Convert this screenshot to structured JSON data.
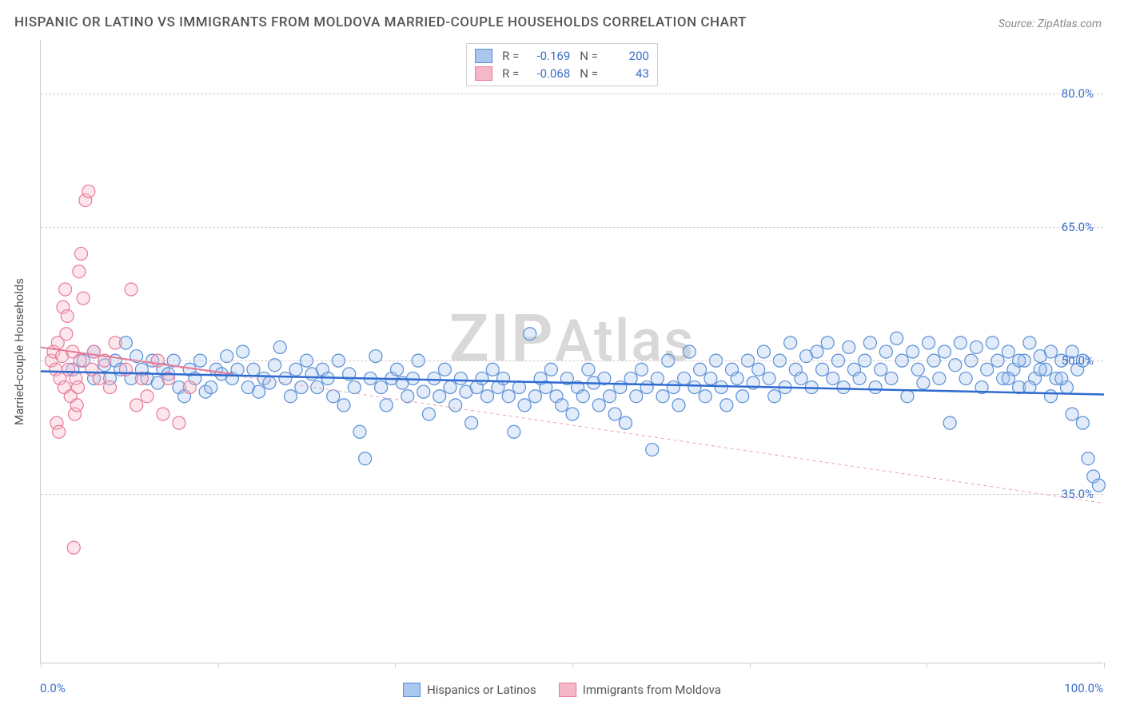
{
  "title": "HISPANIC OR LATINO VS IMMIGRANTS FROM MOLDOVA MARRIED-COUPLE HOUSEHOLDS CORRELATION CHART",
  "source": "Source: ZipAtlas.com",
  "watermark_prefix": "ZIP",
  "watermark_suffix": "Atlas",
  "y_axis_title": "Married-couple Households",
  "chart": {
    "type": "scatter",
    "xlim": [
      0,
      100
    ],
    "ylim": [
      16,
      86
    ],
    "y_gridlines": [
      35,
      50,
      65,
      80
    ],
    "y_tick_labels": [
      "35.0%",
      "50.0%",
      "65.0%",
      "80.0%"
    ],
    "x_ticks": [
      0,
      16.67,
      33.33,
      50,
      66.67,
      83.33,
      100
    ],
    "x_tick_labels": {
      "0": "0.0%",
      "100": "100.0%"
    },
    "background_color": "#ffffff",
    "grid_color": "#d0d0d0",
    "axis_color": "#cccccc",
    "tick_label_color": "#3b6fc9",
    "marker_radius": 8,
    "marker_stroke_width": 1.2,
    "marker_fill_opacity": 0.35,
    "series": [
      {
        "name": "Hispanics or Latinos",
        "color_fill": "#a9c7ef",
        "color_stroke": "#5a8fd6",
        "R": "-0.169",
        "N": "200",
        "trend": {
          "x1": 0,
          "y1": 48.8,
          "x2": 100,
          "y2": 46.2,
          "width": 2.5,
          "dash": "none",
          "color": "#2f6bd0"
        },
        "points": [
          [
            3,
            49
          ],
          [
            4,
            50
          ],
          [
            5,
            48
          ],
          [
            5,
            51
          ],
          [
            6,
            49.5
          ],
          [
            6.5,
            48
          ],
          [
            7,
            50
          ],
          [
            7.5,
            49
          ],
          [
            8,
            52
          ],
          [
            8.5,
            48
          ],
          [
            9,
            50.5
          ],
          [
            9.5,
            49
          ],
          [
            10,
            48
          ],
          [
            10.5,
            50
          ],
          [
            11,
            47.5
          ],
          [
            11.5,
            49
          ],
          [
            12,
            48.5
          ],
          [
            12.5,
            50
          ],
          [
            13,
            47
          ],
          [
            13.5,
            46
          ],
          [
            14,
            49
          ],
          [
            14.5,
            48
          ],
          [
            15,
            50
          ],
          [
            15.5,
            46.5
          ],
          [
            16,
            47
          ],
          [
            16.5,
            49
          ],
          [
            17,
            48.5
          ],
          [
            17.5,
            50.5
          ],
          [
            18,
            48
          ],
          [
            18.5,
            49
          ],
          [
            19,
            51
          ],
          [
            19.5,
            47
          ],
          [
            20,
            49
          ],
          [
            20.5,
            46.5
          ],
          [
            21,
            48
          ],
          [
            21.5,
            47.5
          ],
          [
            22,
            49.5
          ],
          [
            22.5,
            51.5
          ],
          [
            23,
            48
          ],
          [
            23.5,
            46
          ],
          [
            24,
            49
          ],
          [
            24.5,
            47
          ],
          [
            25,
            50
          ],
          [
            25.5,
            48.5
          ],
          [
            26,
            47
          ],
          [
            26.5,
            49
          ],
          [
            27,
            48
          ],
          [
            27.5,
            46
          ],
          [
            28,
            50
          ],
          [
            28.5,
            45
          ],
          [
            29,
            48.5
          ],
          [
            29.5,
            47
          ],
          [
            30,
            42
          ],
          [
            30.5,
            39
          ],
          [
            31,
            48
          ],
          [
            31.5,
            50.5
          ],
          [
            32,
            47
          ],
          [
            32.5,
            45
          ],
          [
            33,
            48
          ],
          [
            33.5,
            49
          ],
          [
            34,
            47.5
          ],
          [
            34.5,
            46
          ],
          [
            35,
            48
          ],
          [
            35.5,
            50
          ],
          [
            36,
            46.5
          ],
          [
            36.5,
            44
          ],
          [
            37,
            48
          ],
          [
            37.5,
            46
          ],
          [
            38,
            49
          ],
          [
            38.5,
            47
          ],
          [
            39,
            45
          ],
          [
            39.5,
            48
          ],
          [
            40,
            46.5
          ],
          [
            40.5,
            43
          ],
          [
            41,
            47
          ],
          [
            41.5,
            48
          ],
          [
            42,
            46
          ],
          [
            42.5,
            49
          ],
          [
            43,
            47
          ],
          [
            43.5,
            48
          ],
          [
            44,
            46
          ],
          [
            44.5,
            42
          ],
          [
            45,
            47
          ],
          [
            45.5,
            45
          ],
          [
            46,
            53
          ],
          [
            46.5,
            46
          ],
          [
            47,
            48
          ],
          [
            47.5,
            47
          ],
          [
            48,
            49
          ],
          [
            48.5,
            46
          ],
          [
            49,
            45
          ],
          [
            49.5,
            48
          ],
          [
            50,
            44
          ],
          [
            50.5,
            47
          ],
          [
            51,
            46
          ],
          [
            51.5,
            49
          ],
          [
            52,
            47.5
          ],
          [
            52.5,
            45
          ],
          [
            53,
            48
          ],
          [
            53.5,
            46
          ],
          [
            54,
            44
          ],
          [
            54.5,
            47
          ],
          [
            55,
            43
          ],
          [
            55.5,
            48
          ],
          [
            56,
            46
          ],
          [
            56.5,
            49
          ],
          [
            57,
            47
          ],
          [
            57.5,
            40
          ],
          [
            58,
            48
          ],
          [
            58.5,
            46
          ],
          [
            59,
            50
          ],
          [
            59.5,
            47
          ],
          [
            60,
            45
          ],
          [
            60.5,
            48
          ],
          [
            61,
            51
          ],
          [
            61.5,
            47
          ],
          [
            62,
            49
          ],
          [
            62.5,
            46
          ],
          [
            63,
            48
          ],
          [
            63.5,
            50
          ],
          [
            64,
            47
          ],
          [
            64.5,
            45
          ],
          [
            65,
            49
          ],
          [
            65.5,
            48
          ],
          [
            66,
            46
          ],
          [
            66.5,
            50
          ],
          [
            67,
            47.5
          ],
          [
            67.5,
            49
          ],
          [
            68,
            51
          ],
          [
            68.5,
            48
          ],
          [
            69,
            46
          ],
          [
            69.5,
            50
          ],
          [
            70,
            47
          ],
          [
            70.5,
            52
          ],
          [
            71,
            49
          ],
          [
            71.5,
            48
          ],
          [
            72,
            50.5
          ],
          [
            72.5,
            47
          ],
          [
            73,
            51
          ],
          [
            73.5,
            49
          ],
          [
            74,
            52
          ],
          [
            74.5,
            48
          ],
          [
            75,
            50
          ],
          [
            75.5,
            47
          ],
          [
            76,
            51.5
          ],
          [
            76.5,
            49
          ],
          [
            77,
            48
          ],
          [
            77.5,
            50
          ],
          [
            78,
            52
          ],
          [
            78.5,
            47
          ],
          [
            79,
            49
          ],
          [
            79.5,
            51
          ],
          [
            80,
            48
          ],
          [
            80.5,
            52.5
          ],
          [
            81,
            50
          ],
          [
            81.5,
            46
          ],
          [
            82,
            51
          ],
          [
            82.5,
            49
          ],
          [
            83,
            47.5
          ],
          [
            83.5,
            52
          ],
          [
            84,
            50
          ],
          [
            84.5,
            48
          ],
          [
            85,
            51
          ],
          [
            85.5,
            43
          ],
          [
            86,
            49.5
          ],
          [
            86.5,
            52
          ],
          [
            87,
            48
          ],
          [
            87.5,
            50
          ],
          [
            88,
            51.5
          ],
          [
            88.5,
            47
          ],
          [
            89,
            49
          ],
          [
            89.5,
            52
          ],
          [
            90,
            50
          ],
          [
            90.5,
            48
          ],
          [
            91,
            51
          ],
          [
            91.5,
            49
          ],
          [
            92,
            47
          ],
          [
            92.5,
            50
          ],
          [
            93,
            52
          ],
          [
            93.5,
            48
          ],
          [
            94,
            50.5
          ],
          [
            94.5,
            49
          ],
          [
            95,
            51
          ],
          [
            95.5,
            48
          ],
          [
            96,
            50
          ],
          [
            96.5,
            47
          ],
          [
            97,
            44
          ],
          [
            97.5,
            49
          ],
          [
            98,
            43
          ],
          [
            98.5,
            39
          ],
          [
            99,
            37
          ],
          [
            99.5,
            36
          ],
          [
            98,
            50
          ],
          [
            97,
            51
          ],
          [
            96,
            48
          ],
          [
            95,
            46
          ],
          [
            94,
            49
          ],
          [
            93,
            47
          ],
          [
            92,
            50
          ],
          [
            91,
            48
          ]
        ]
      },
      {
        "name": "Immigrants from Moldova",
        "color_fill": "#f5b8c8",
        "color_stroke": "#e77a9a",
        "R": "-0.068",
        "N": "43",
        "trend": {
          "x1": 0,
          "y1": 51.5,
          "x2": 100,
          "y2": 34.0,
          "width": 1,
          "dash": "4,4",
          "color": "#e9a2b5"
        },
        "trend_solid": {
          "x1": 0,
          "y1": 51.5,
          "x2": 18,
          "y2": 48.5,
          "width": 2,
          "color": "#e77a9a"
        },
        "points": [
          [
            1,
            50
          ],
          [
            1.2,
            51
          ],
          [
            1.4,
            49
          ],
          [
            1.6,
            52
          ],
          [
            1.8,
            48
          ],
          [
            2,
            50.5
          ],
          [
            2.2,
            47
          ],
          [
            2.4,
            53
          ],
          [
            2.6,
            49
          ],
          [
            2.8,
            46
          ],
          [
            3,
            51
          ],
          [
            3.2,
            44
          ],
          [
            3.4,
            45
          ],
          [
            3.6,
            60
          ],
          [
            3.8,
            62
          ],
          [
            4,
            57
          ],
          [
            4.2,
            68
          ],
          [
            4.5,
            69
          ],
          [
            1.5,
            43
          ],
          [
            1.7,
            42
          ],
          [
            2.1,
            56
          ],
          [
            2.3,
            58
          ],
          [
            2.5,
            55
          ],
          [
            3.1,
            29
          ],
          [
            3.3,
            48
          ],
          [
            3.5,
            47
          ],
          [
            3.7,
            50
          ],
          [
            4.8,
            49
          ],
          [
            5,
            51
          ],
          [
            5.5,
            48
          ],
          [
            6,
            50
          ],
          [
            6.5,
            47
          ],
          [
            7,
            52
          ],
          [
            8,
            49
          ],
          [
            8.5,
            58
          ],
          [
            9,
            45
          ],
          [
            9.5,
            48
          ],
          [
            10,
            46
          ],
          [
            11,
            50
          ],
          [
            11.5,
            44
          ],
          [
            12,
            48
          ],
          [
            13,
            43
          ],
          [
            14,
            47
          ]
        ]
      }
    ]
  },
  "legend_top": {
    "r_label": "R =",
    "n_label": "N ="
  }
}
